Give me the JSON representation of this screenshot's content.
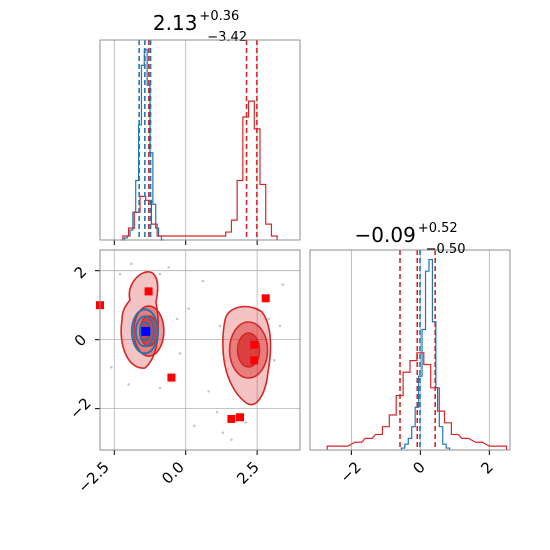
{
  "chart_data": [
    {
      "type": "histogram",
      "panel": "x0-marginal",
      "title": {
        "value": "2.13",
        "plus": "+0.36",
        "minus": "−3.42"
      },
      "xlim": [
        -3.0,
        4.0
      ],
      "grid": true,
      "axis_labels_shown": false,
      "series": [
        {
          "color": "#1f77b4",
          "bin_centers": [
            -2.2,
            -2.1,
            -2.0,
            -1.9,
            -1.8,
            -1.7,
            -1.6,
            -1.5,
            -1.4,
            -1.3,
            -1.2,
            -1.1,
            -1.0,
            -0.9,
            -0.8
          ],
          "counts": [
            0,
            1,
            2,
            5,
            14,
            30,
            58,
            88,
            96,
            78,
            44,
            18,
            6,
            2,
            0
          ],
          "quantile_lines": [
            -1.63,
            -1.43,
            -1.23
          ]
        },
        {
          "color": "#d62728",
          "bin_centers": [
            -2.1,
            -1.9,
            -1.7,
            -1.5,
            -1.3,
            -1.1,
            -0.9,
            1.3,
            1.5,
            1.7,
            1.9,
            2.1,
            2.3,
            2.5,
            2.7,
            2.9,
            3.1
          ],
          "counts": [
            2,
            6,
            14,
            22,
            20,
            8,
            2,
            2,
            4,
            10,
            30,
            62,
            70,
            56,
            28,
            8,
            2
          ],
          "quantile_lines": [
            -1.29,
            2.13,
            2.49
          ]
        }
      ]
    },
    {
      "type": "contour",
      "panel": "x0-vs-x1",
      "xlim": [
        -3.0,
        4.0
      ],
      "ylim": [
        -3.2,
        2.6
      ],
      "xticks": [
        "−2.5",
        "0.0",
        "2.5"
      ],
      "yticks": [
        "−2",
        "0",
        "2"
      ],
      "grid": true,
      "series": [
        {
          "color": "#1f77b4",
          "kind": "contours",
          "centers": [
            [
              -1.43,
              0.24
            ]
          ]
        },
        {
          "color": "#d62728",
          "kind": "filled-contours",
          "centers": [
            [
              -1.29,
              0.25
            ],
            [
              2.2,
              -0.3
            ]
          ]
        },
        {
          "color": "#ff0000",
          "kind": "points",
          "points": [
            [
              -3.0,
              1.0
            ],
            [
              -1.3,
              1.4
            ],
            [
              -0.5,
              -1.1
            ],
            [
              1.6,
              -2.3
            ],
            [
              1.9,
              -2.25
            ],
            [
              2.4,
              -0.15
            ],
            [
              2.4,
              -0.6
            ],
            [
              2.8,
              1.2
            ]
          ]
        },
        {
          "color": "#0000ff",
          "kind": "points",
          "points": [
            [
              -1.4,
              0.24
            ]
          ]
        }
      ]
    },
    {
      "type": "histogram",
      "panel": "x1-marginal",
      "title": {
        "value": "−0.09",
        "plus": "+0.52",
        "minus": "−0.50"
      },
      "xlim": [
        -3.2,
        2.6
      ],
      "xticks": [
        "−2",
        "0",
        "2"
      ],
      "grid": true,
      "series": [
        {
          "color": "#1f77b4",
          "bin_centers": [
            -0.5,
            -0.4,
            -0.3,
            -0.2,
            -0.1,
            0.0,
            0.1,
            0.2,
            0.3,
            0.4,
            0.5,
            0.6,
            0.7,
            0.8
          ],
          "counts": [
            1,
            3,
            6,
            12,
            22,
            38,
            62,
            92,
            98,
            66,
            32,
            12,
            3,
            1
          ],
          "quantile_lines": [
            -0.01
          ]
        },
        {
          "color": "#d62728",
          "bin_centers": [
            -2.6,
            -2.2,
            -1.8,
            -1.5,
            -1.2,
            -1.0,
            -0.8,
            -0.6,
            -0.4,
            -0.2,
            0.0,
            0.2,
            0.4,
            0.6,
            0.8,
            1.0,
            1.3,
            1.7,
            2.1,
            2.4
          ],
          "counts": [
            2,
            2,
            4,
            6,
            8,
            12,
            18,
            28,
            40,
            46,
            50,
            44,
            32,
            20,
            14,
            8,
            6,
            4,
            2,
            2
          ],
          "quantile_lines": [
            -0.59,
            -0.09,
            0.43
          ]
        }
      ]
    }
  ]
}
